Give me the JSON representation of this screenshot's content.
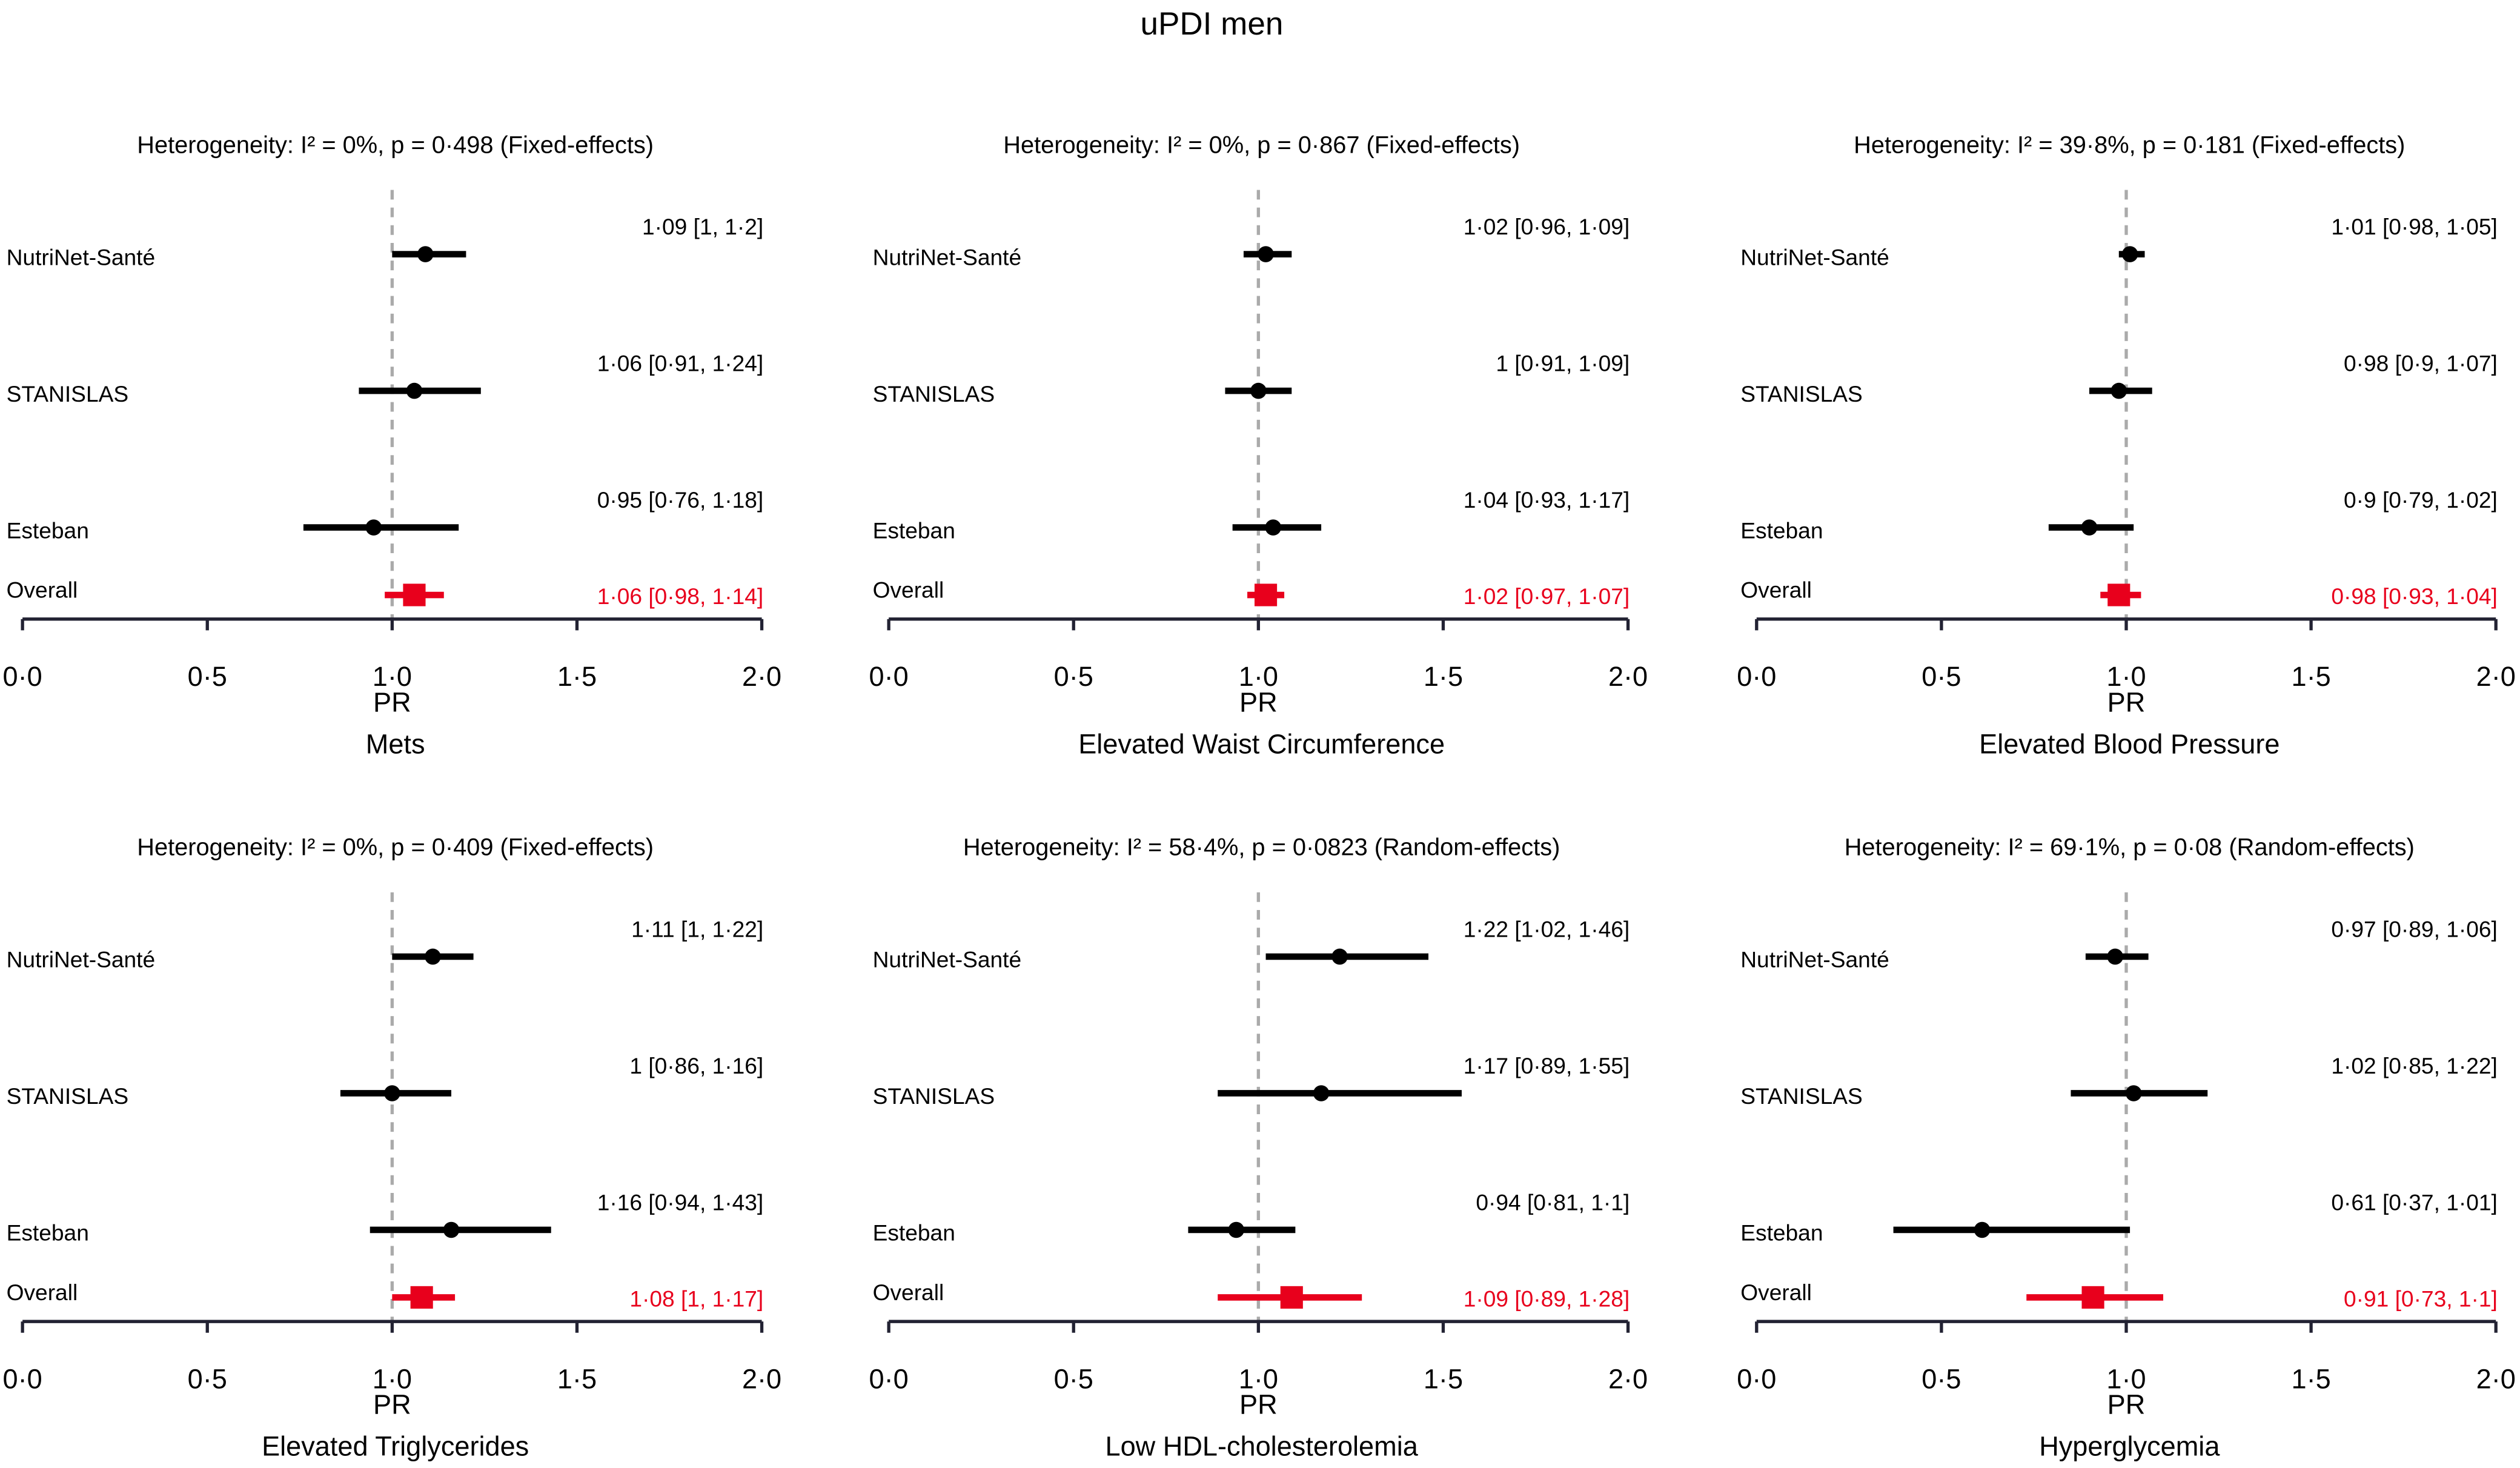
{
  "title": "uPDI men",
  "chart_data": [
    {
      "type": "forest",
      "title": "Heterogeneity: I² = 0%, p = 0·498 (Fixed-effects)",
      "xlabel": "PR",
      "outcome": "Mets",
      "categories": [
        "NutriNet-Santé",
        "STANISLAS",
        "Esteban",
        "Overall"
      ],
      "values": [
        1.09,
        1.06,
        0.95,
        1.06
      ],
      "lower": [
        1,
        0.91,
        0.76,
        0.98
      ],
      "upper": [
        1.2,
        1.24,
        1.18,
        1.14
      ],
      "value_labels": [
        "1·09 [1, 1·2]",
        "1·06 [0·91, 1·24]",
        "0·95 [0·76, 1·18]",
        "1·06 [0·98, 1·14]"
      ],
      "color": "#000000",
      "overall_color": "#e8001c",
      "refline": 1,
      "xlim": [
        0,
        2
      ],
      "xticks": [
        {
          "value": 0,
          "label": "0·0"
        },
        {
          "value": 0.5,
          "label": "0·5"
        },
        {
          "value": 1,
          "label": "1·0"
        },
        {
          "value": 1.5,
          "label": "1·5"
        },
        {
          "value": 2,
          "label": "2·0"
        }
      ]
    },
    {
      "type": "forest",
      "title": "Heterogeneity: I² = 0%, p = 0·867 (Fixed-effects)",
      "xlabel": "PR",
      "outcome": "Elevated Waist Circumference",
      "categories": [
        "NutriNet-Santé",
        "STANISLAS",
        "Esteban",
        "Overall"
      ],
      "values": [
        1.02,
        1,
        1.04,
        1.02
      ],
      "lower": [
        0.96,
        0.91,
        0.93,
        0.97
      ],
      "upper": [
        1.09,
        1.09,
        1.17,
        1.07
      ],
      "value_labels": [
        "1·02 [0·96, 1·09]",
        "1 [0·91, 1·09]",
        "1·04 [0·93, 1·17]",
        "1·02 [0·97, 1·07]"
      ],
      "color": "#000000",
      "overall_color": "#e8001c",
      "refline": 1,
      "xlim": [
        0,
        2
      ],
      "xticks": [
        {
          "value": 0,
          "label": "0·0"
        },
        {
          "value": 0.5,
          "label": "0·5"
        },
        {
          "value": 1,
          "label": "1·0"
        },
        {
          "value": 1.5,
          "label": "1·5"
        },
        {
          "value": 2,
          "label": "2·0"
        }
      ]
    },
    {
      "type": "forest",
      "title": "Heterogeneity: I² = 39·8%, p = 0·181 (Fixed-effects)",
      "xlabel": "PR",
      "outcome": "Elevated Blood Pressure",
      "categories": [
        "NutriNet-Santé",
        "STANISLAS",
        "Esteban",
        "Overall"
      ],
      "values": [
        1.01,
        0.98,
        0.9,
        0.98
      ],
      "lower": [
        0.98,
        0.9,
        0.79,
        0.93
      ],
      "upper": [
        1.05,
        1.07,
        1.02,
        1.04
      ],
      "value_labels": [
        "1·01 [0·98, 1·05]",
        "0·98 [0·9, 1·07]",
        "0·9 [0·79, 1·02]",
        "0·98 [0·93, 1·04]"
      ],
      "color": "#000000",
      "overall_color": "#e8001c",
      "refline": 1,
      "xlim": [
        0,
        2
      ],
      "xticks": [
        {
          "value": 0,
          "label": "0·0"
        },
        {
          "value": 0.5,
          "label": "0·5"
        },
        {
          "value": 1,
          "label": "1·0"
        },
        {
          "value": 1.5,
          "label": "1·5"
        },
        {
          "value": 2,
          "label": "2·0"
        }
      ]
    },
    {
      "type": "forest",
      "title": "Heterogeneity: I² = 0%, p = 0·409 (Fixed-effects)",
      "xlabel": "PR",
      "outcome": "Elevated Triglycerides",
      "categories": [
        "NutriNet-Santé",
        "STANISLAS",
        "Esteban",
        "Overall"
      ],
      "values": [
        1.11,
        1,
        1.16,
        1.08
      ],
      "lower": [
        1,
        0.86,
        0.94,
        1
      ],
      "upper": [
        1.22,
        1.16,
        1.43,
        1.17
      ],
      "value_labels": [
        "1·11 [1, 1·22]",
        "1 [0·86, 1·16]",
        "1·16 [0·94, 1·43]",
        "1·08 [1, 1·17]"
      ],
      "color": "#000000",
      "overall_color": "#e8001c",
      "refline": 1,
      "xlim": [
        0,
        2
      ],
      "xticks": [
        {
          "value": 0,
          "label": "0·0"
        },
        {
          "value": 0.5,
          "label": "0·5"
        },
        {
          "value": 1,
          "label": "1·0"
        },
        {
          "value": 1.5,
          "label": "1·5"
        },
        {
          "value": 2,
          "label": "2·0"
        }
      ]
    },
    {
      "type": "forest",
      "title": "Heterogeneity: I² = 58·4%, p = 0·0823 (Random-effects)",
      "xlabel": "PR",
      "outcome": "Low HDL-cholesterolemia",
      "categories": [
        "NutriNet-Santé",
        "STANISLAS",
        "Esteban",
        "Overall"
      ],
      "values": [
        1.22,
        1.17,
        0.94,
        1.09
      ],
      "lower": [
        1.02,
        0.89,
        0.81,
        0.89
      ],
      "upper": [
        1.46,
        1.55,
        1.1,
        1.28
      ],
      "value_labels": [
        "1·22 [1·02, 1·46]",
        "1·17 [0·89, 1·55]",
        "0·94 [0·81, 1·1]",
        "1·09 [0·89, 1·28]"
      ],
      "color": "#000000",
      "overall_color": "#e8001c",
      "refline": 1,
      "xlim": [
        0,
        2
      ],
      "xticks": [
        {
          "value": 0,
          "label": "0·0"
        },
        {
          "value": 0.5,
          "label": "0·5"
        },
        {
          "value": 1,
          "label": "1·0"
        },
        {
          "value": 1.5,
          "label": "1·5"
        },
        {
          "value": 2,
          "label": "2·0"
        }
      ]
    },
    {
      "type": "forest",
      "title": "Heterogeneity: I² = 69·1%, p = 0·08 (Random-effects)",
      "xlabel": "PR",
      "outcome": "Hyperglycemia",
      "categories": [
        "NutriNet-Santé",
        "STANISLAS",
        "Esteban",
        "Overall"
      ],
      "values": [
        0.97,
        1.02,
        0.61,
        0.91
      ],
      "lower": [
        0.89,
        0.85,
        0.37,
        0.73
      ],
      "upper": [
        1.06,
        1.22,
        1.01,
        1.1
      ],
      "value_labels": [
        "0·97 [0·89, 1·06]",
        "1·02 [0·85, 1·22]",
        "0·61 [0·37, 1·01]",
        "0·91 [0·73, 1·1]"
      ],
      "color": "#000000",
      "overall_color": "#e8001c",
      "refline": 1,
      "xlim": [
        0,
        2
      ],
      "xticks": [
        {
          "value": 0,
          "label": "0·0"
        },
        {
          "value": 0.5,
          "label": "0·5"
        },
        {
          "value": 1,
          "label": "1·0"
        },
        {
          "value": 1.5,
          "label": "1·5"
        },
        {
          "value": 2,
          "label": "2·0"
        }
      ]
    }
  ]
}
